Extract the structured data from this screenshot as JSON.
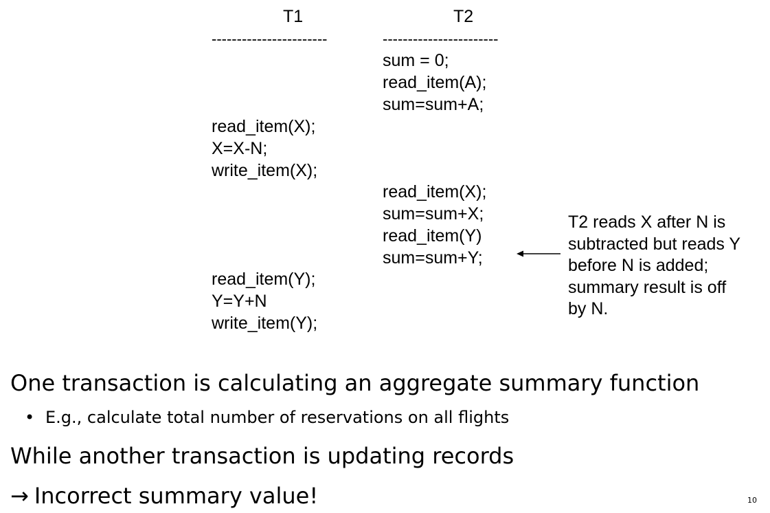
{
  "schedule": {
    "t1_header": "T1",
    "t2_header": "T2",
    "t1_dashes": "-----------------------",
    "t2_dashes": "-----------------------",
    "t2_block1": [
      "sum = 0;",
      "read_item(A);",
      "sum=sum+A;"
    ],
    "t1_block1": [
      "read_item(X);",
      "X=X-N;",
      "write_item(X);"
    ],
    "t2_block2": [
      "read_item(X);",
      "sum=sum+X;",
      "read_item(Y)",
      "sum=sum+Y;"
    ],
    "t1_block2": [
      "read_item(Y);",
      "Y=Y+N",
      "write_item(Y);"
    ]
  },
  "annotation": {
    "lines": [
      "T2 reads X after N is",
      "subtracted but reads Y",
      "before N is added;",
      "summary result is off",
      "by N."
    ]
  },
  "bullets": {
    "heading1": "One transaction is calculating an aggregate summary function",
    "sub1_marker": "•",
    "sub1": "E.g., calculate total number of reservations on all flights",
    "heading2": "While another transaction is updating records",
    "heading3_arrow": "→",
    "heading3": "Incorrect summary value!"
  },
  "page_number": "10"
}
